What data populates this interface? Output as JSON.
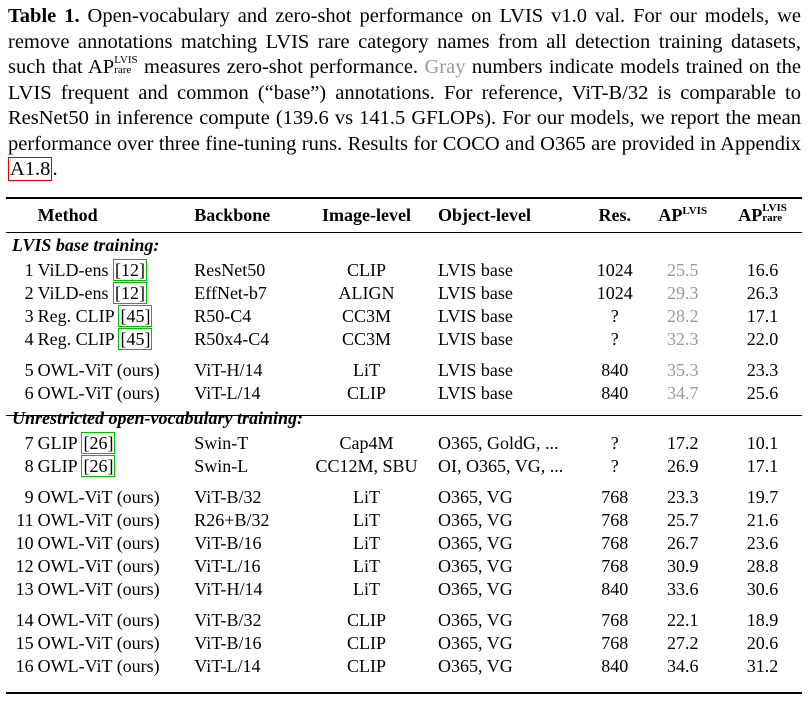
{
  "caption": {
    "label": "Table 1.",
    "text_a": " Open-vocabulary and zero-shot performance on LVIS v1.0 val. For our models, we remove annotations matching LVIS rare category names from all detection training datasets, such that AP",
    "ap_sup": "LVIS",
    "ap_sub": "rare",
    "text_b": " measures zero-shot performance. ",
    "gray_word": "Gray",
    "text_c": " numbers indicate models trained on the LVIS frequent and common (“base”) annotations. For reference, ViT-B/32 is comparable to ResNet50 in inference compute (139.6 vs 141.5 GFLOPs). For our models, we report the mean performance over three fine-tuning runs. Results for COCO and O365 are provided in Appendix ",
    "appendix_ref": "A1.8",
    "text_d": "."
  },
  "table": {
    "headers": {
      "method": "Method",
      "backbone": "Backbone",
      "image_level": "Image-level",
      "object_level": "Object-level",
      "res": "Res.",
      "ap": "AP",
      "ap_sup": "LVIS",
      "ap_rare": "AP",
      "ap_rare_sup": "LVIS",
      "ap_rare_sub": "rare"
    },
    "section1": "LVIS base training:",
    "section2": "Unrestricted open-vocabulary training:",
    "rows1": [
      {
        "idx": "1",
        "method": "ViLD-ens",
        "cite": "12",
        "backbone": "ResNet50",
        "img": "CLIP",
        "obj": "LVIS base",
        "res": "1024",
        "ap": "25.5",
        "aprare": "16.6"
      },
      {
        "idx": "2",
        "method": "ViLD-ens",
        "cite": "12",
        "backbone": "EffNet-b7",
        "img": "ALIGN",
        "obj": "LVIS base",
        "res": "1024",
        "ap": "29.3",
        "aprare": "26.3"
      },
      {
        "idx": "3",
        "method": "Reg. CLIP",
        "cite": "45",
        "backbone": "R50-C4",
        "img": "CC3M",
        "obj": "LVIS base",
        "res": "?",
        "ap": "28.2",
        "aprare": "17.1"
      },
      {
        "idx": "4",
        "method": "Reg. CLIP",
        "cite": "45",
        "backbone": "R50x4-C4",
        "img": "CC3M",
        "obj": "LVIS base",
        "res": "?",
        "ap": "32.3",
        "aprare": "22.0"
      }
    ],
    "rows1b": [
      {
        "idx": "5",
        "method": "OWL-ViT (ours)",
        "backbone": "ViT-H/14",
        "img": "LiT",
        "obj": "LVIS base",
        "res": "840",
        "ap": "35.3",
        "aprare": "23.3"
      },
      {
        "idx": "6",
        "method": "OWL-ViT (ours)",
        "backbone": "ViT-L/14",
        "img": "CLIP",
        "obj": "LVIS base",
        "res": "840",
        "ap": "34.7",
        "aprare": "25.6"
      }
    ],
    "rows2": [
      {
        "idx": "7",
        "method": "GLIP",
        "cite": "26",
        "backbone": "Swin-T",
        "img": "Cap4M",
        "obj": "O365, GoldG, ...",
        "res": "?",
        "ap": "17.2",
        "aprare": "10.1"
      },
      {
        "idx": "8",
        "method": "GLIP",
        "cite": "26",
        "backbone": "Swin-L",
        "img": "CC12M, SBU",
        "obj": "OI, O365, VG, ...",
        "res": "?",
        "ap": "26.9",
        "aprare": "17.1"
      }
    ],
    "rows2b": [
      {
        "idx": "9",
        "method": "OWL-ViT (ours)",
        "backbone": "ViT-B/32",
        "img": "LiT",
        "obj": "O365, VG",
        "res": "768",
        "ap": "23.3",
        "aprare": "19.7"
      },
      {
        "idx": "11",
        "method": "OWL-ViT (ours)",
        "backbone": "R26+B/32",
        "img": "LiT",
        "obj": "O365, VG",
        "res": "768",
        "ap": "25.7",
        "aprare": "21.6"
      },
      {
        "idx": "10",
        "method": "OWL-ViT (ours)",
        "backbone": "ViT-B/16",
        "img": "LiT",
        "obj": "O365, VG",
        "res": "768",
        "ap": "26.7",
        "aprare": "23.6"
      },
      {
        "idx": "12",
        "method": "OWL-ViT (ours)",
        "backbone": "ViT-L/16",
        "img": "LiT",
        "obj": "O365, VG",
        "res": "768",
        "ap": "30.9",
        "aprare": "28.8"
      },
      {
        "idx": "13",
        "method": "OWL-ViT (ours)",
        "backbone": "ViT-H/14",
        "img": "LiT",
        "obj": "O365, VG",
        "res": "840",
        "ap": "33.6",
        "aprare": "30.6"
      }
    ],
    "rows2c": [
      {
        "idx": "14",
        "method": "OWL-ViT (ours)",
        "backbone": "ViT-B/32",
        "img": "CLIP",
        "obj": "O365, VG",
        "res": "768",
        "ap": "22.1",
        "aprare": "18.9"
      },
      {
        "idx": "15",
        "method": "OWL-ViT (ours)",
        "backbone": "ViT-B/16",
        "img": "CLIP",
        "obj": "O365, VG",
        "res": "768",
        "ap": "27.2",
        "aprare": "20.6"
      },
      {
        "idx": "16",
        "method": "OWL-ViT (ours)",
        "backbone": "ViT-L/14",
        "img": "CLIP",
        "obj": "O365, VG",
        "res": "840",
        "ap": "34.6",
        "aprare": "31.2"
      }
    ],
    "colors": {
      "gray": "#9a9a9a",
      "cite_box": "#00c000",
      "ref_box": "#e00000"
    }
  }
}
